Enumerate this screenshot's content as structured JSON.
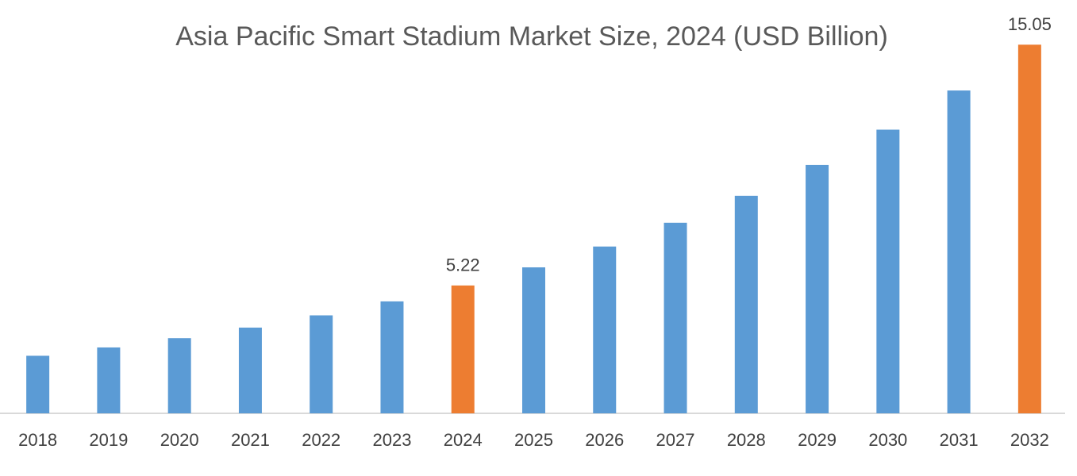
{
  "chart_data": {
    "type": "bar",
    "title": "Asia Pacific Smart Stadium Market Size, 2024 (USD Billion)",
    "categories": [
      "2018",
      "2019",
      "2020",
      "2021",
      "2022",
      "2023",
      "2024",
      "2025",
      "2026",
      "2027",
      "2028",
      "2029",
      "2030",
      "2031",
      "2032"
    ],
    "values": [
      2.35,
      2.69,
      3.07,
      3.5,
      4.0,
      4.57,
      5.22,
      5.96,
      6.81,
      7.78,
      8.88,
      10.14,
      11.58,
      13.18,
      15.05
    ],
    "value_labels": [
      null,
      null,
      null,
      null,
      null,
      null,
      "5.22",
      null,
      null,
      null,
      null,
      null,
      null,
      null,
      "15.05"
    ],
    "colors": [
      "#5b9bd5",
      "#5b9bd5",
      "#5b9bd5",
      "#5b9bd5",
      "#5b9bd5",
      "#5b9bd5",
      "#ed7d31",
      "#5b9bd5",
      "#5b9bd5",
      "#5b9bd5",
      "#5b9bd5",
      "#5b9bd5",
      "#5b9bd5",
      "#5b9bd5",
      "#ed7d31"
    ],
    "ylim": [
      0,
      16
    ]
  }
}
